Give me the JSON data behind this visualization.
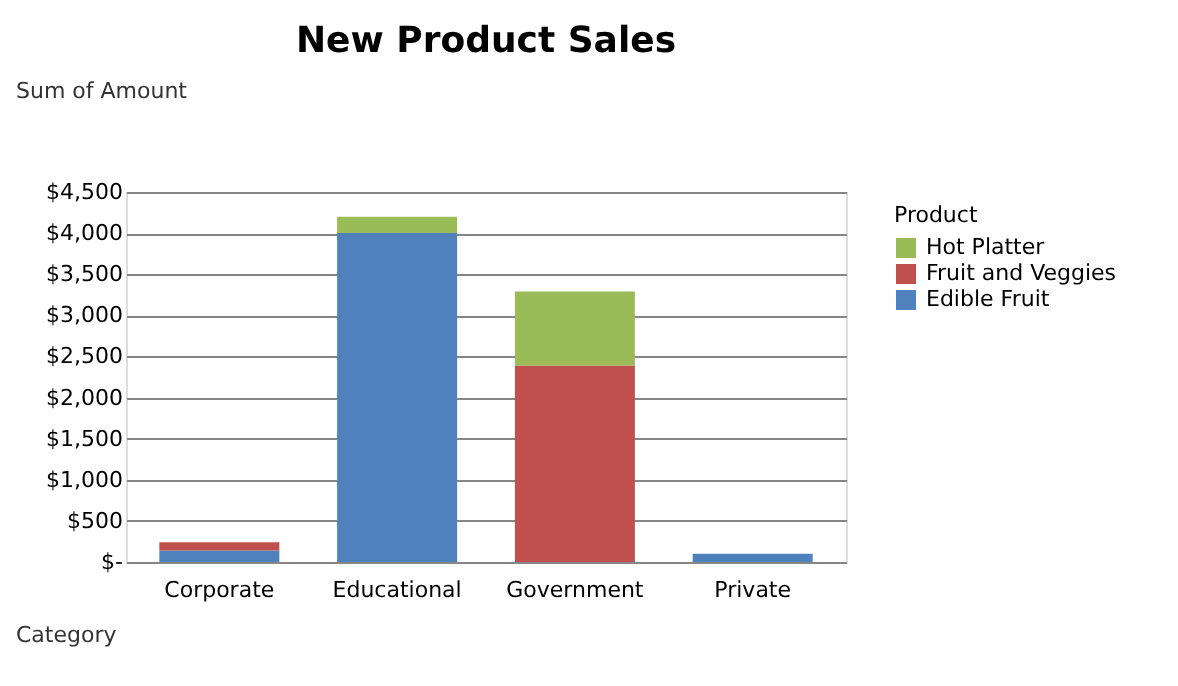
{
  "chart_data": {
    "type": "bar",
    "title": "New Product Sales",
    "stacked": true,
    "legend_title": "Product",
    "legend": "right",
    "grid": "y",
    "annotations": [
      "Sum of Amount",
      "Category"
    ],
    "categories": [
      "Corporate",
      "Educational",
      "Government",
      "Private"
    ],
    "series": [
      {
        "name": "Edible Fruit",
        "color": "#4f81bd",
        "values": [
          140,
          4000,
          null,
          100
        ]
      },
      {
        "name": "Fruit and Veggies",
        "color": "#c0504d",
        "values": [
          100,
          null,
          2390,
          null
        ]
      },
      {
        "name": "Hot Platter",
        "color": "#9bbb59",
        "values": [
          null,
          200,
          900,
          null
        ]
      }
    ],
    "ylim": [
      0,
      4500
    ],
    "yticks": [
      {
        "value": 0,
        "label": "$-"
      },
      {
        "value": 500,
        "label": "$500"
      },
      {
        "value": 1000,
        "label": "$1,000"
      },
      {
        "value": 1500,
        "label": "$1,500"
      },
      {
        "value": 2000,
        "label": "$2,000"
      },
      {
        "value": 2500,
        "label": "$2,500"
      },
      {
        "value": 3000,
        "label": "$3,000"
      },
      {
        "value": 3500,
        "label": "$3,500"
      },
      {
        "value": 4000,
        "label": "$4,000"
      },
      {
        "value": 4500,
        "label": "$4,500"
      }
    ]
  }
}
